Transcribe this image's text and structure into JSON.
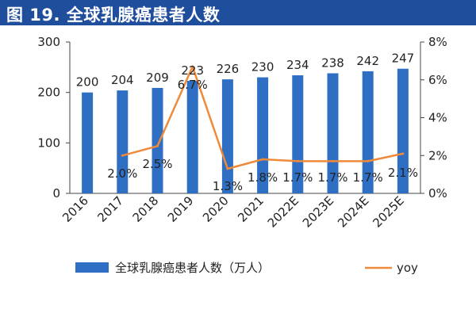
{
  "figure_title": "图 19. 全球乳腺癌患者人数",
  "colors": {
    "title_bg": "#1f4e9c",
    "bar": "#2e6fc4",
    "line": "#ef8a3a"
  },
  "chart_data": {
    "type": "bar",
    "categories": [
      "2016",
      "2017",
      "2018",
      "2019",
      "2020",
      "2021",
      "2022E",
      "2023E",
      "2024E",
      "2025E"
    ],
    "series": [
      {
        "name": "全球乳腺癌患者人数（万人）",
        "type": "bar",
        "axis": "left",
        "values": [
          200,
          204,
          209,
          223,
          226,
          230,
          234,
          238,
          242,
          247
        ],
        "labels": [
          "200",
          "204",
          "209",
          "223",
          "226",
          "230",
          "234",
          "238",
          "242",
          "247"
        ]
      },
      {
        "name": "yoy",
        "type": "line",
        "axis": "right",
        "values": [
          null,
          2.0,
          2.5,
          6.7,
          1.3,
          1.8,
          1.7,
          1.7,
          1.7,
          2.1
        ],
        "labels": [
          "",
          "2.0%",
          "2.5%",
          "6.7%",
          "1.3%",
          "1.8%",
          "1.7%",
          "1.7%",
          "1.7%",
          "2.1%"
        ]
      }
    ],
    "y_left": {
      "min": 0,
      "max": 300,
      "ticks": [
        0,
        100,
        200,
        300
      ],
      "tick_labels": [
        "0",
        "100",
        "200",
        "300"
      ]
    },
    "y_right": {
      "min": 0,
      "max": 8,
      "ticks": [
        0,
        2,
        4,
        6,
        8
      ],
      "tick_labels": [
        "0%",
        "2%",
        "4%",
        "6%",
        "8%"
      ]
    },
    "grid": false,
    "legend": {
      "position": "bottom"
    }
  }
}
